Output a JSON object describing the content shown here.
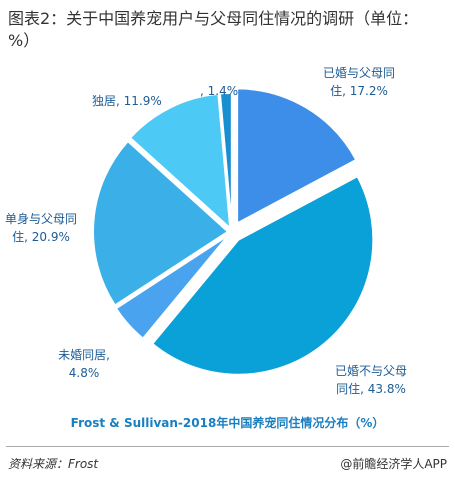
{
  "title": "图表2：关于中国养宠用户与父母同住情况的调研（单位：%）",
  "chart_data": {
    "type": "pie",
    "subtitle": "Frost & Sullivan-2018年中国养宠同住情况分布（%）",
    "values": [
      17.2,
      43.8,
      4.8,
      20.9,
      11.9,
      1.4
    ],
    "value_labels": [
      "已婚与父母同住, 17.2%",
      "已婚不与父母同住, 43.8%",
      "未婚同居, 4.8%",
      "单身与父母同住, 20.9%",
      "独居, 11.9%",
      ", 1.4%"
    ],
    "colors": [
      "#3d8ee8",
      "#0aa0d8",
      "#4aa3ee",
      "#3bb0e8",
      "#4dc9f5",
      "#1a8fd0"
    ]
  },
  "footer": {
    "source": "资料来源：Frost",
    "brand": "@前瞻经济学人APP"
  }
}
